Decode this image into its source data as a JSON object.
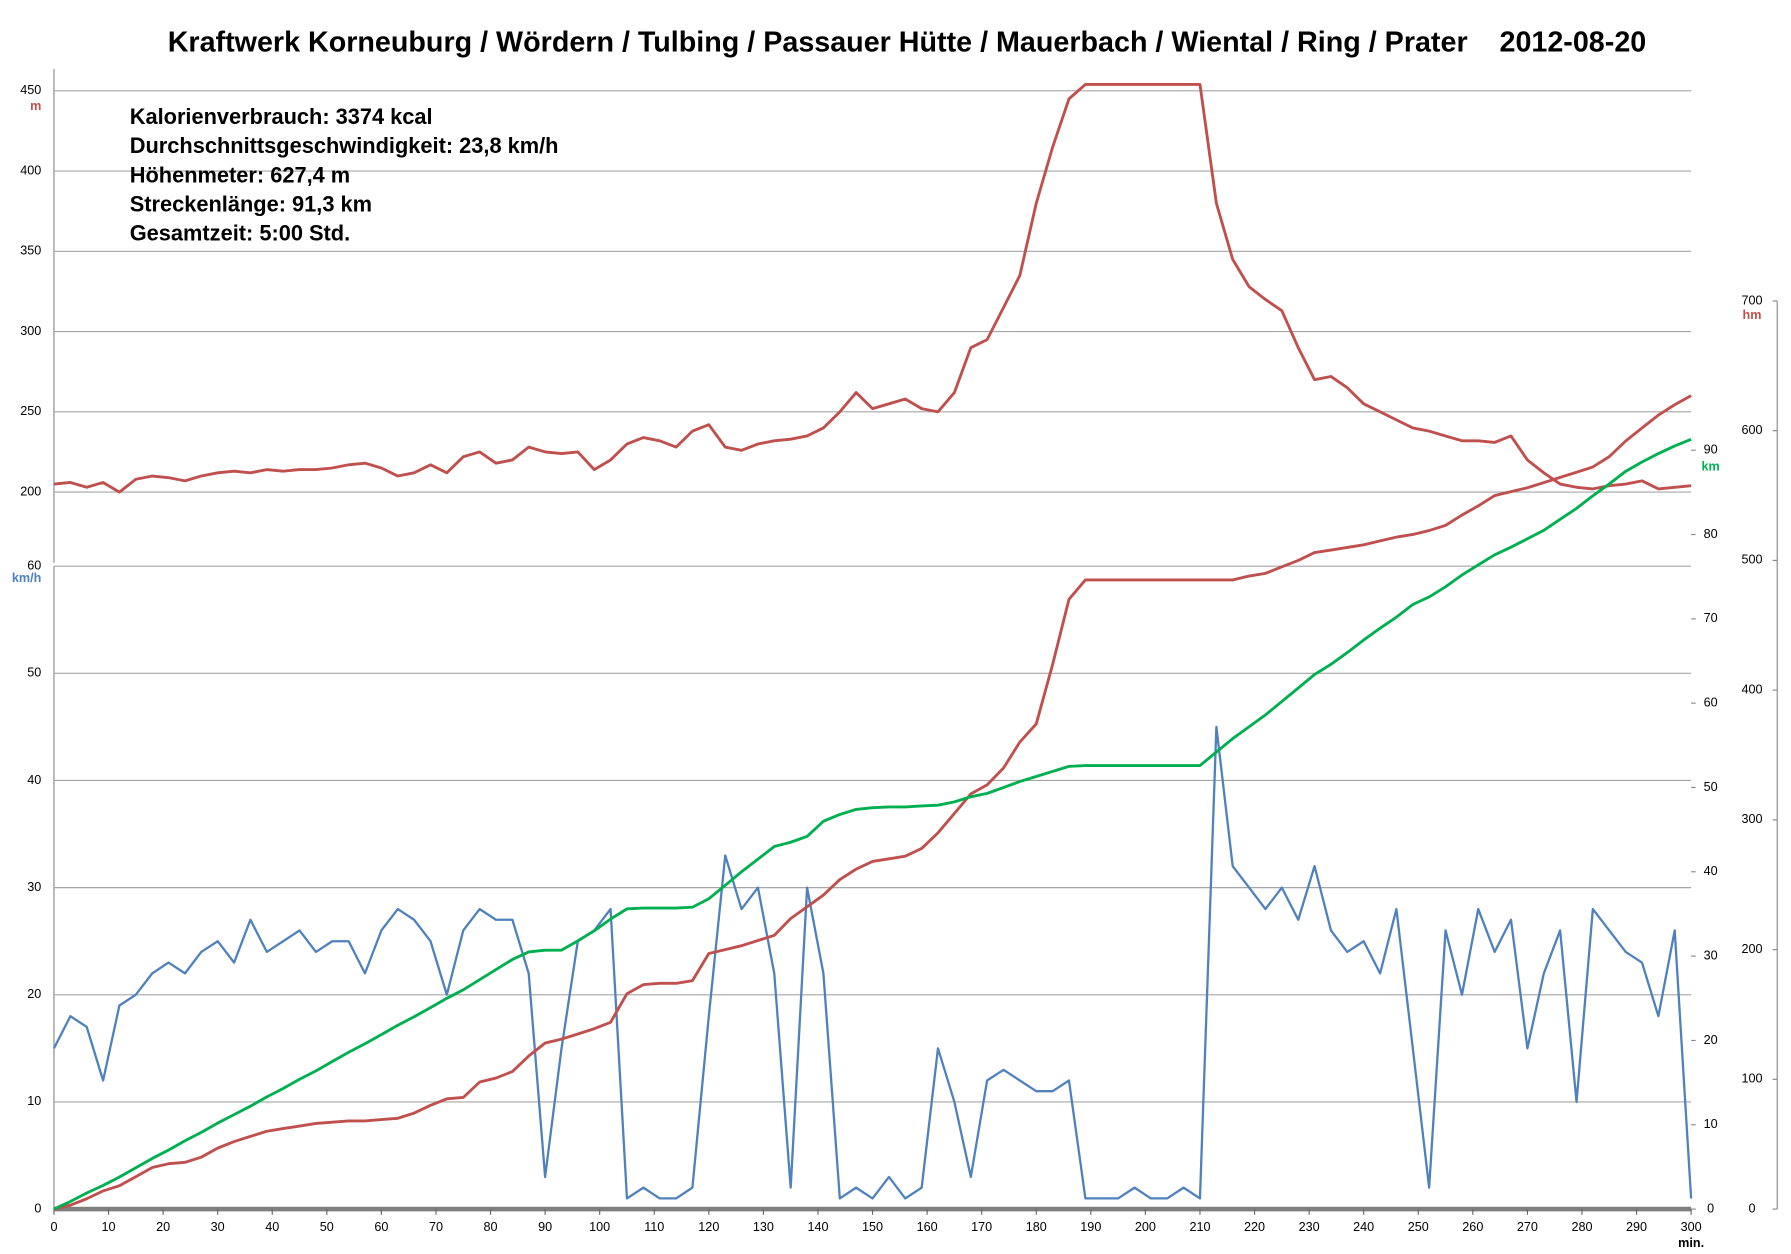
{
  "chart_data": {
    "type": "line",
    "title": "Kraftwerk Korneuburg / Wördern / Tulbing / Passauer Hütte / Mauerbach / Wiental / Ring / Prater    2012-08-20",
    "annotations": [
      "Kalorienverbrauch: 3374 kcal",
      "Durchschnittsgeschwindigkeit: 23,8 km/h",
      "Höhenmeter: 627,4 m",
      "Streckenlänge: 91,3 km",
      "Gesamtzeit: 5:00 Std."
    ],
    "xlabel": "min.",
    "xlim": [
      0,
      300
    ],
    "xticks": [
      0,
      10,
      20,
      30,
      40,
      50,
      60,
      70,
      80,
      90,
      100,
      110,
      120,
      130,
      140,
      150,
      160,
      170,
      180,
      190,
      200,
      210,
      220,
      230,
      240,
      250,
      260,
      270,
      280,
      290,
      300
    ],
    "x": [
      0,
      3,
      6,
      9,
      12,
      15,
      18,
      21,
      24,
      27,
      30,
      33,
      36,
      39,
      42,
      45,
      48,
      51,
      54,
      57,
      60,
      63,
      66,
      69,
      72,
      75,
      78,
      81,
      84,
      87,
      90,
      93,
      96,
      99,
      102,
      105,
      108,
      111,
      114,
      117,
      120,
      123,
      126,
      129,
      132,
      135,
      138,
      141,
      144,
      147,
      150,
      153,
      156,
      159,
      162,
      165,
      168,
      171,
      174,
      177,
      180,
      183,
      186,
      189,
      192,
      195,
      198,
      201,
      204,
      207,
      210,
      213,
      216,
      219,
      222,
      225,
      228,
      231,
      234,
      237,
      240,
      243,
      246,
      249,
      252,
      255,
      258,
      261,
      264,
      267,
      270,
      273,
      276,
      279,
      282,
      285,
      288,
      291,
      294,
      297,
      300
    ],
    "ylabel": "m",
    "ylim": [
      156,
      450
    ],
    "yticks": [
      200,
      250,
      300,
      350,
      400,
      450
    ],
    "y2label": "km/h",
    "y2lim": [
      0,
      60
    ],
    "y2ticks": [
      0,
      10,
      20,
      30,
      40,
      50,
      60
    ],
    "y3label": "km",
    "y3lim": [
      0,
      90
    ],
    "y3ticks": [
      0,
      10,
      20,
      30,
      40,
      50,
      60,
      70,
      80,
      90
    ],
    "y4label": "hm",
    "y4lim": [
      0,
      700
    ],
    "y4ticks": [
      0,
      100,
      200,
      300,
      400,
      500,
      600,
      700
    ],
    "grid": true,
    "series": [
      {
        "axis": "y",
        "color": "#c0504d",
        "values": [
          205,
          206,
          203,
          206,
          200,
          208,
          210,
          209,
          207,
          210,
          212,
          213,
          212,
          214,
          213,
          214,
          214,
          215,
          217,
          218,
          215,
          210,
          212,
          217,
          212,
          222,
          225,
          218,
          220,
          228,
          225,
          224,
          225,
          214,
          220,
          230,
          234,
          232,
          228,
          238,
          242,
          228,
          226,
          230,
          232,
          233,
          235,
          240,
          250,
          262,
          252,
          255,
          258,
          252,
          250,
          262,
          290,
          295,
          315,
          335,
          380,
          415,
          445,
          454,
          454,
          454,
          454,
          454,
          454,
          454,
          454,
          380,
          345,
          328,
          320,
          313,
          290,
          270,
          272,
          265,
          255,
          250,
          245,
          240,
          238,
          235,
          232,
          232,
          231,
          235,
          220,
          212,
          205,
          203,
          202,
          204,
          205,
          207,
          202,
          203,
          204
        ]
      },
      {
        "axis": "y2",
        "color": "#4f81bd",
        "values": [
          15,
          18,
          17,
          12,
          19,
          20,
          22,
          23,
          22,
          24,
          25,
          23,
          27,
          24,
          25,
          26,
          24,
          25,
          25,
          22,
          26,
          28,
          27,
          25,
          20,
          26,
          28,
          27,
          27,
          22,
          3,
          15,
          25,
          26,
          28,
          1,
          2,
          1,
          1,
          2,
          18,
          33,
          28,
          30,
          22,
          2,
          30,
          22,
          1,
          2,
          1,
          3,
          1,
          2,
          15,
          10,
          3,
          12,
          13,
          12,
          11,
          11,
          12,
          1,
          1,
          1,
          2,
          1,
          1,
          2,
          1,
          45,
          32,
          30,
          28,
          30,
          27,
          32,
          26,
          24,
          25,
          22,
          28,
          15,
          2,
          26,
          20,
          28,
          24,
          27,
          15,
          22,
          26,
          10,
          28,
          26,
          24,
          23,
          18,
          26,
          1
        ]
      },
      {
        "axis": "y4",
        "color": "#c0504d",
        "values": [
          0,
          3,
          8,
          14,
          18,
          25,
          32,
          35,
          36,
          40,
          47,
          52,
          56,
          60,
          62,
          64,
          66,
          67,
          68,
          68,
          69,
          70,
          74,
          80,
          85,
          86,
          98,
          101,
          106,
          118,
          128,
          131,
          135,
          139,
          144,
          166,
          173,
          174,
          174,
          176,
          197,
          200,
          203,
          207,
          211,
          224,
          233,
          242,
          254,
          262,
          268,
          270,
          272,
          278,
          290,
          305,
          320,
          327,
          340,
          360,
          374,
          420,
          470,
          485,
          485,
          485,
          485,
          485,
          485,
          485,
          485,
          485,
          485,
          488,
          490,
          495,
          500,
          506,
          508,
          510,
          512,
          515,
          518,
          520,
          523,
          527,
          535,
          542,
          550,
          553,
          556,
          560,
          564,
          568,
          572,
          580,
          592,
          602,
          612,
          620,
          627
        ]
      },
      {
        "axis": "y3",
        "color": "#00b050",
        "values": [
          0,
          0.9,
          1.9,
          2.8,
          3.8,
          4.9,
          6,
          7,
          8.1,
          9.1,
          10.2,
          11.2,
          12.2,
          13.3,
          14.3,
          15.4,
          16.4,
          17.5,
          18.6,
          19.6,
          20.7,
          21.8,
          22.8,
          23.9,
          25,
          26,
          27.2,
          28.4,
          29.6,
          30.5,
          30.7,
          30.7,
          31.8,
          33,
          34.4,
          35.6,
          35.7,
          35.7,
          35.7,
          35.8,
          36.8,
          38.4,
          40,
          41.5,
          43,
          43.5,
          44.2,
          46,
          46.8,
          47.4,
          47.6,
          47.7,
          47.7,
          47.8,
          47.9,
          48.3,
          48.9,
          49.3,
          50,
          50.7,
          51.3,
          51.9,
          52.5,
          52.6,
          52.6,
          52.6,
          52.6,
          52.6,
          52.6,
          52.6,
          52.6,
          54.2,
          55.8,
          57.2,
          58.6,
          60.2,
          61.8,
          63.4,
          64.6,
          66,
          67.5,
          68.9,
          70.2,
          71.7,
          72.6,
          73.8,
          75.2,
          76.4,
          77.6,
          78.5,
          79.5,
          80.5,
          81.8,
          83.1,
          84.6,
          86,
          87.5,
          88.6,
          89.6,
          90.5,
          91.3
        ]
      }
    ]
  }
}
